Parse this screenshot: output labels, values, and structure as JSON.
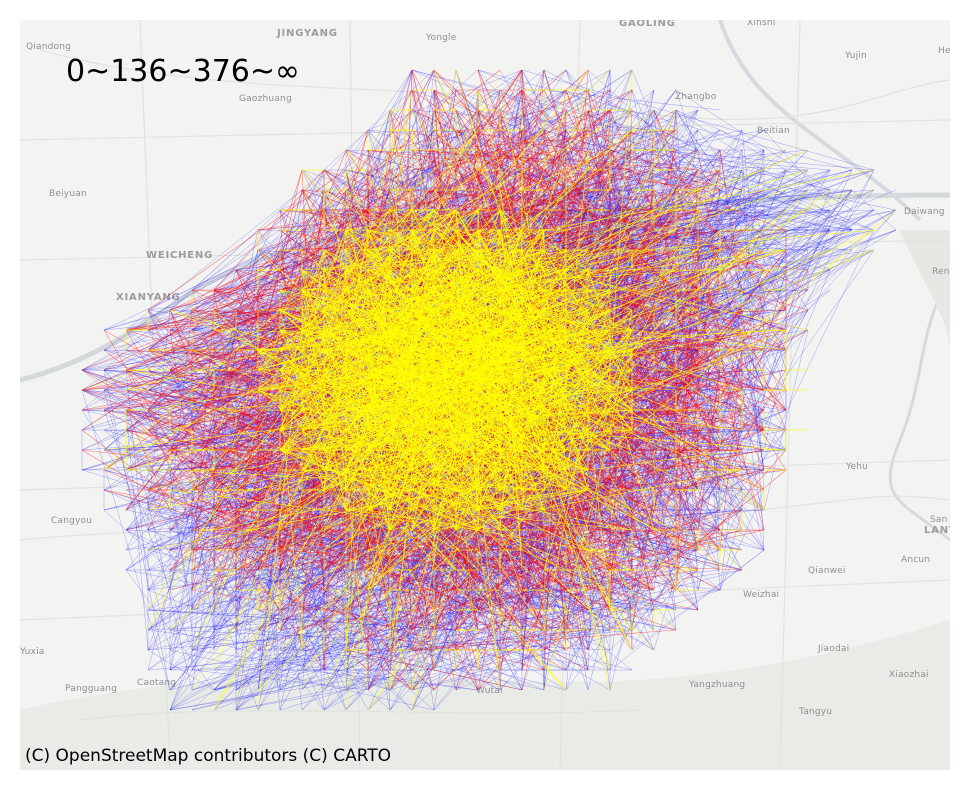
{
  "legend": {
    "text": "0~136~376~∞"
  },
  "attribution": "(C) OpenStreetMap contributors (C) CARTO",
  "colors": {
    "background": "#f3f3f1",
    "river": "#d4d9dc",
    "road": "#e2e2df",
    "terrain": "#e9ebe6",
    "flow_low": "#0000ff",
    "flow_mid": "#ff0000",
    "flow_high": "#ffff00",
    "label": "#8d8f92"
  },
  "places": [
    {
      "id": "qiandong",
      "name": "Qiandong",
      "kind": "town"
    },
    {
      "id": "jingyang",
      "name": "JINGYANG",
      "kind": "district"
    },
    {
      "id": "yongle",
      "name": "Yongle",
      "kind": "town"
    },
    {
      "id": "gaoling",
      "name": "GAOLING",
      "kind": "district"
    },
    {
      "id": "xinshi",
      "name": "Xinshi",
      "kind": "town"
    },
    {
      "id": "yujin",
      "name": "Yujin",
      "kind": "town"
    },
    {
      "id": "he",
      "name": "He",
      "kind": "town"
    },
    {
      "id": "gaozhuang",
      "name": "Gaozhuang",
      "kind": "town"
    },
    {
      "id": "zhangbo",
      "name": "Zhangbo",
      "kind": "town"
    },
    {
      "id": "beitian",
      "name": "Beitian",
      "kind": "town"
    },
    {
      "id": "beiyuan",
      "name": "Beiyuan",
      "kind": "town"
    },
    {
      "id": "daiwang",
      "name": "Daiwang",
      "kind": "town"
    },
    {
      "id": "weicheng",
      "name": "WEICHENG",
      "kind": "district"
    },
    {
      "id": "ren",
      "name": "Ren",
      "kind": "town"
    },
    {
      "id": "xianyang",
      "name": "XIANYANG",
      "kind": "district"
    },
    {
      "id": "yehu",
      "name": "Yehu",
      "kind": "town"
    },
    {
      "id": "cangyou",
      "name": "Cangyou",
      "kind": "town"
    },
    {
      "id": "san",
      "name": "San",
      "kind": "town"
    },
    {
      "id": "lant",
      "name": "LANT",
      "kind": "district"
    },
    {
      "id": "ancun",
      "name": "Ancun",
      "kind": "town"
    },
    {
      "id": "qianwei",
      "name": "Qianwei",
      "kind": "town"
    },
    {
      "id": "weizhai",
      "name": "Weizhai",
      "kind": "town"
    },
    {
      "id": "yuxia",
      "name": "Yuxia",
      "kind": "town"
    },
    {
      "id": "jiaodai",
      "name": "Jiaodai",
      "kind": "town"
    },
    {
      "id": "xiaozhai",
      "name": "Xiaozhai",
      "kind": "town"
    },
    {
      "id": "pangguang",
      "name": "Pangguang",
      "kind": "town"
    },
    {
      "id": "caotang",
      "name": "Caotang",
      "kind": "town"
    },
    {
      "id": "wutai",
      "name": "Wutai",
      "kind": "town"
    },
    {
      "id": "yangzhuang",
      "name": "Yangzhuang",
      "kind": "town"
    },
    {
      "id": "tangyu",
      "name": "Tangyu",
      "kind": "town"
    }
  ]
}
